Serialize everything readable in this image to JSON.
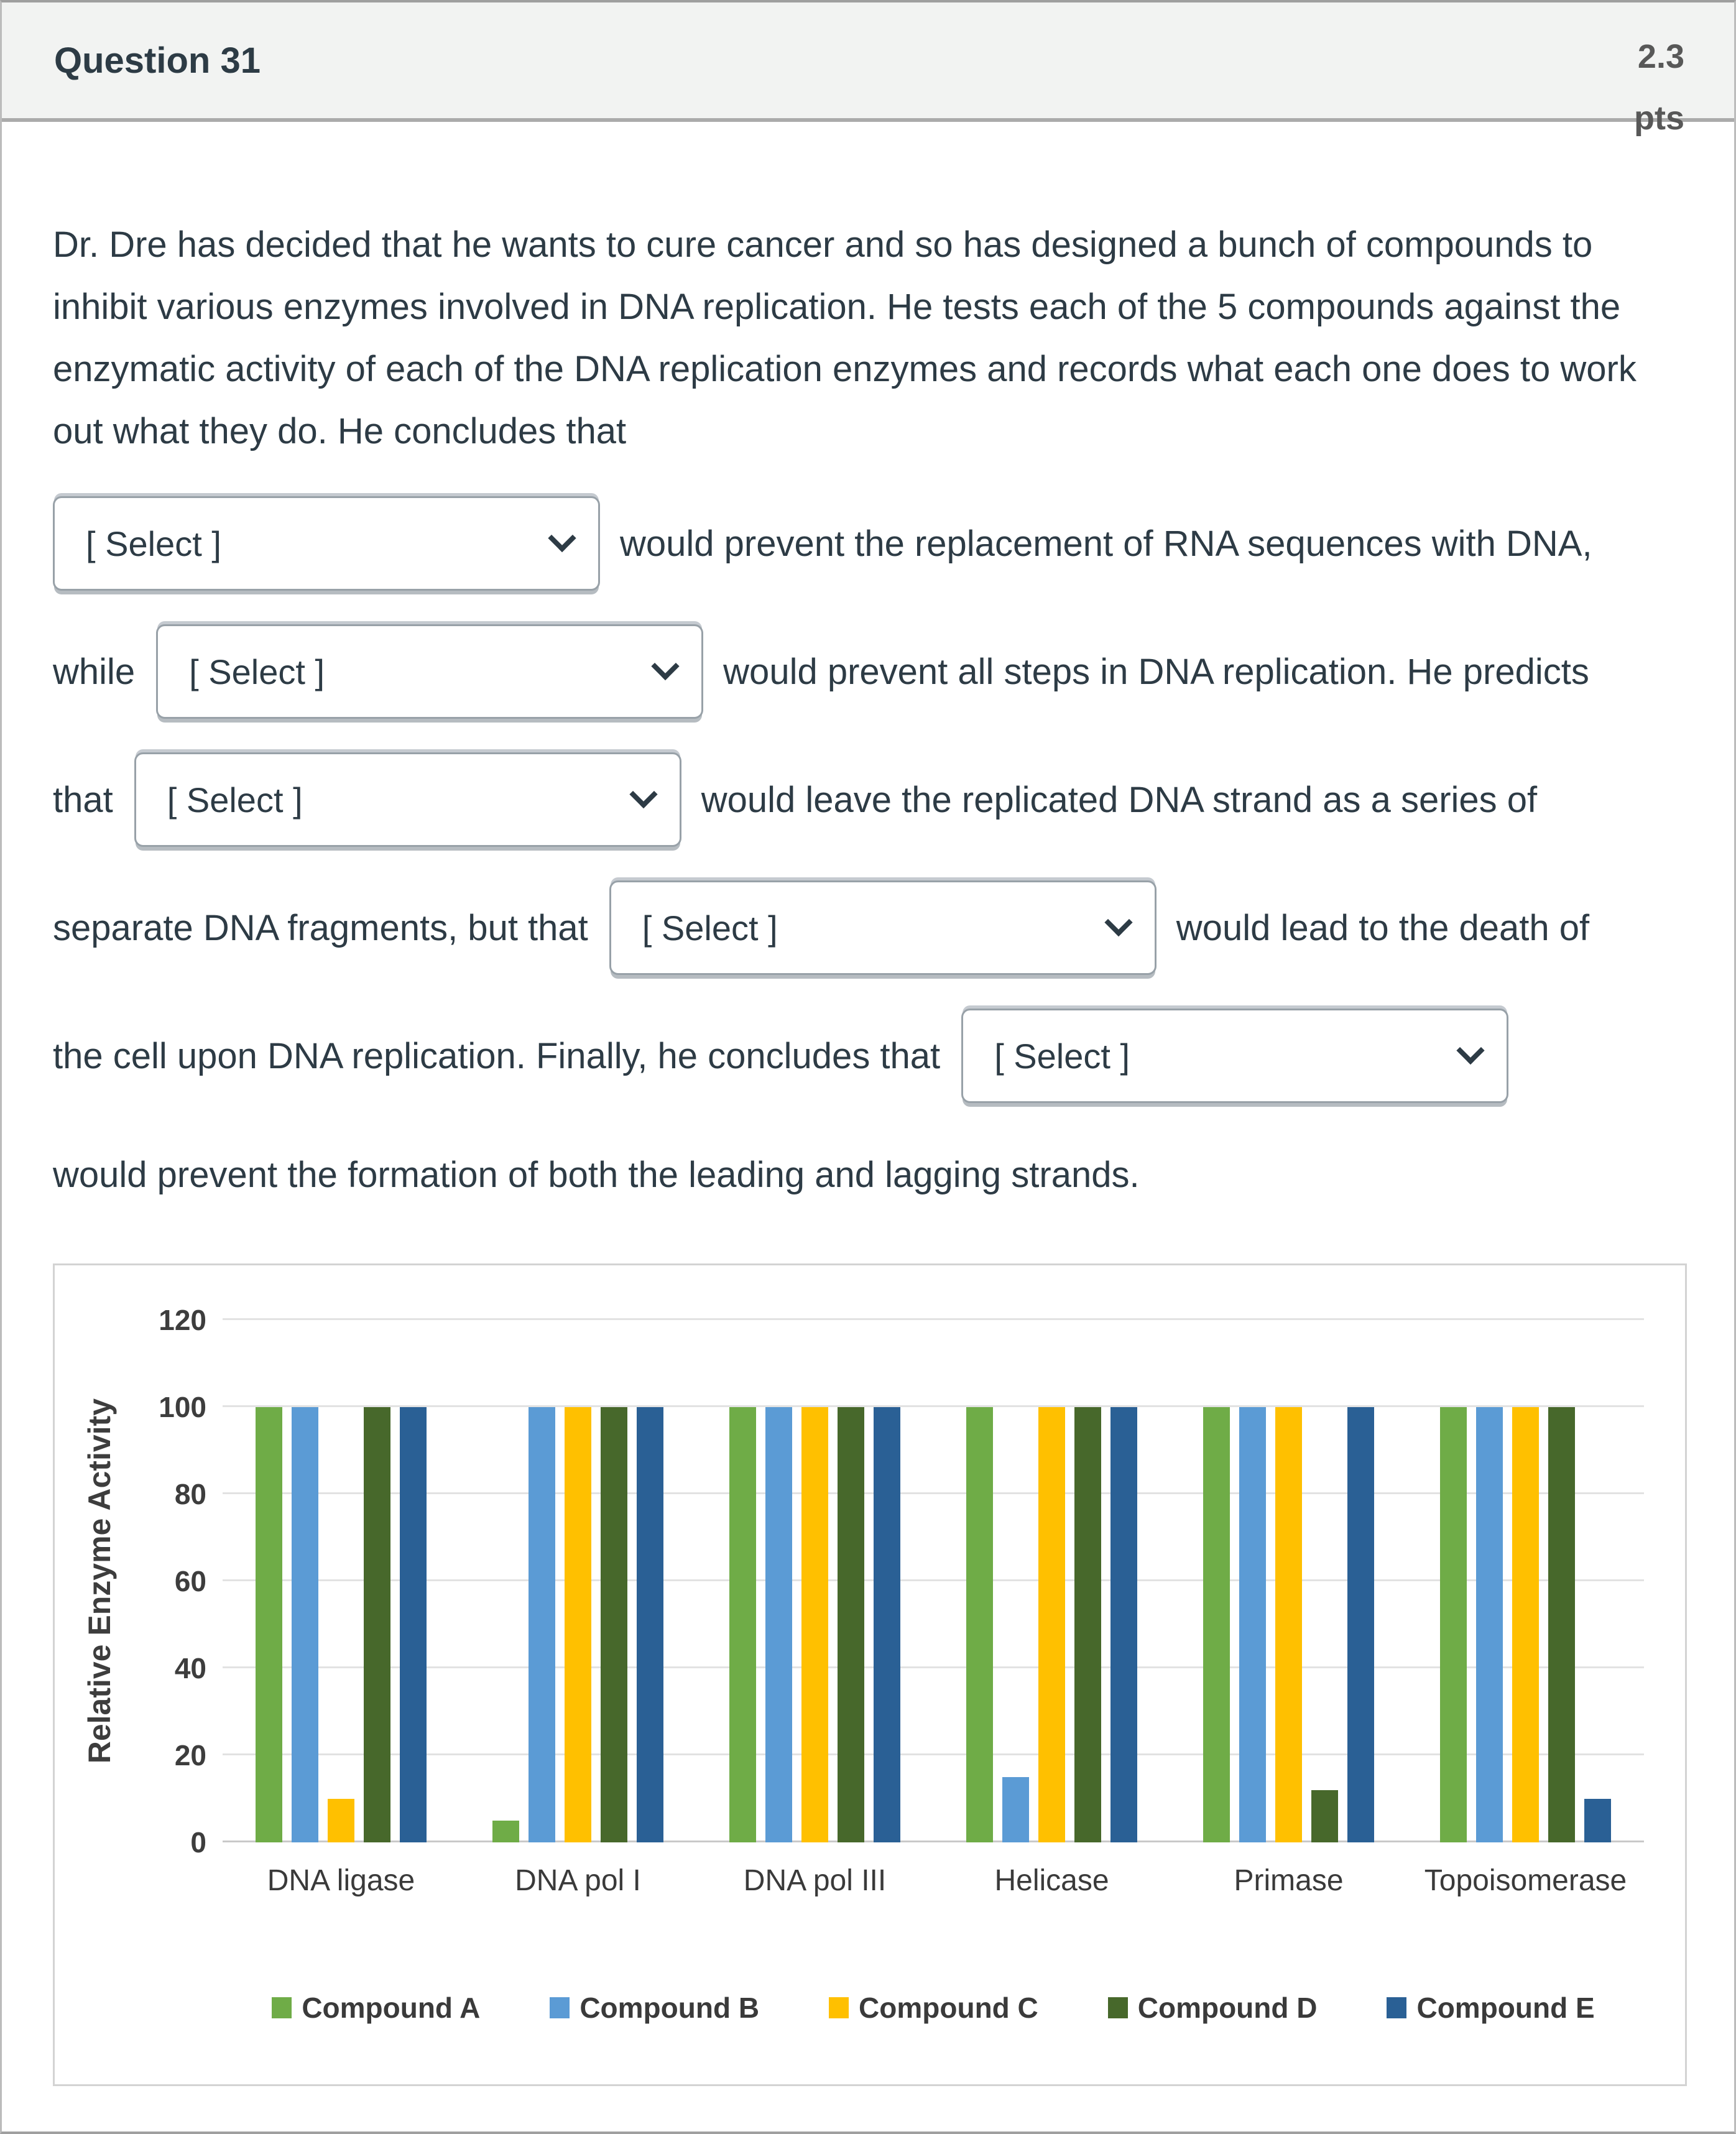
{
  "header": {
    "title": "Question 31",
    "points": "2.3 pts"
  },
  "question": {
    "intro": "Dr. Dre has decided that he wants to cure cancer and so has designed a bunch of compounds to inhibit various enzymes involved in DNA replication. He tests each of the 5 compounds against the enzymatic activity of each of the DNA replication enzymes and records what each one does to work out what they do. He concludes that",
    "select_label": "[ Select ]",
    "rows": [
      {
        "pre": "",
        "post": "would prevent the replacement of RNA sequences with DNA,"
      },
      {
        "pre": "while",
        "post": "would prevent all steps in DNA replication. He predicts"
      },
      {
        "pre": "that",
        "post": "would leave the replicated DNA strand as a series of"
      },
      {
        "pre": "separate DNA fragments, but that",
        "post": "would lead to the death of"
      },
      {
        "pre": "the cell upon DNA replication. Finally, he concludes that",
        "post": ""
      }
    ],
    "outro": "would prevent the formation of both the leading and lagging strands."
  },
  "chart_data": {
    "type": "bar",
    "title": "",
    "categories": [
      "DNA ligase",
      "DNA pol I",
      "DNA pol III",
      "Helicase",
      "Primase",
      "Topoisomerase"
    ],
    "series": [
      {
        "name": "Compound A",
        "color": "#6FAC47",
        "values": [
          100,
          5,
          100,
          100,
          100,
          100
        ]
      },
      {
        "name": "Compound B",
        "color": "#5B9BD5",
        "values": [
          100,
          100,
          100,
          15,
          100,
          100
        ]
      },
      {
        "name": "Compound C",
        "color": "#FFC000",
        "values": [
          10,
          100,
          100,
          100,
          100,
          100
        ]
      },
      {
        "name": "Compound D",
        "color": "#47682B",
        "values": [
          100,
          100,
          100,
          100,
          12,
          100
        ]
      },
      {
        "name": "Compound E",
        "color": "#2A6095",
        "values": [
          100,
          100,
          100,
          100,
          100,
          10
        ]
      }
    ],
    "xlabel": "",
    "ylabel": "Relative Enzyme Activity",
    "ylim": [
      0,
      120
    ],
    "ytick_step": 20,
    "grid": true,
    "legend_position": "bottom"
  }
}
